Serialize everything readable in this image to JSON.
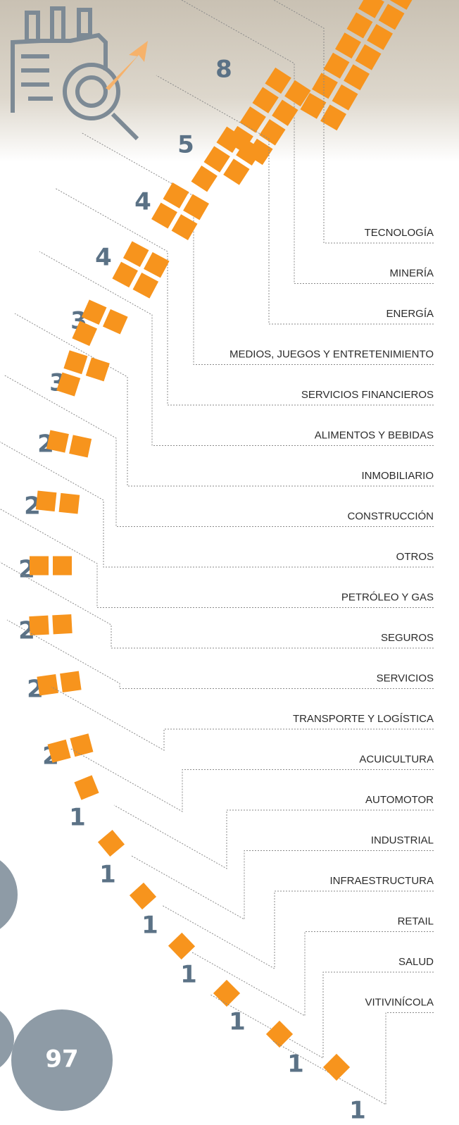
{
  "items": [
    {
      "label": "TECNOLOGÍA"
    },
    {
      "label": "MINERÍA",
      "count": 8
    },
    {
      "label": "ENERGÍA",
      "count": 5
    },
    {
      "label": "MEDIOS, JUEGOS Y ENTRETENIMIENTO",
      "count": 4
    },
    {
      "label": "SERVICIOS FINANCIEROS",
      "count": 4
    },
    {
      "label": "ALIMENTOS Y BEBIDAS",
      "count": 3
    },
    {
      "label": "INMOBILIARIO",
      "count": 3
    },
    {
      "label": "CONSTRUCCIÓN",
      "count": 2
    },
    {
      "label": "OTROS",
      "count": 2
    },
    {
      "label": "PETRÓLEO Y GAS",
      "count": 2
    },
    {
      "label": "SEGUROS",
      "count": 2
    },
    {
      "label": "SERVICIOS",
      "count": 2
    },
    {
      "label": "TRANSPORTE Y LOGÍSTICA",
      "count": 2
    },
    {
      "label": "ACUICULTURA",
      "count": 1
    },
    {
      "label": "AUTOMOTOR",
      "count": 1
    },
    {
      "label": "INDUSTRIAL",
      "count": 1
    },
    {
      "label": "INFRAESTRUCTURA",
      "count": 1
    },
    {
      "label": "RETAIL",
      "count": 1
    },
    {
      "label": "SALUD",
      "count": 1
    },
    {
      "label": "VITIVINÍCOLA",
      "count": 1
    }
  ],
  "page_number": 97
}
